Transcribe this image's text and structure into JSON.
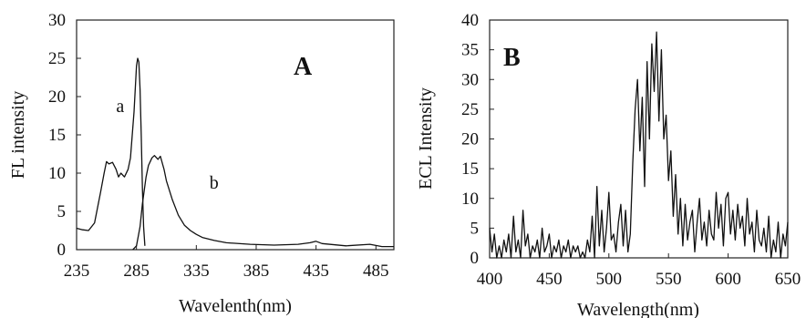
{
  "chart_data": [
    {
      "type": "line",
      "panel_label": "A",
      "xlabel": "Wavelenth(nm)",
      "ylabel": "FL intensity",
      "xlim": [
        235,
        500
      ],
      "ylim": [
        0,
        30
      ],
      "xticks": [
        235,
        285,
        335,
        385,
        435,
        485
      ],
      "yticks": [
        0,
        5,
        10,
        15,
        20,
        25,
        30
      ],
      "grid": false,
      "annotations": [
        {
          "text": "a",
          "x": 268,
          "y": 18
        },
        {
          "text": "b",
          "x": 346,
          "y": 8
        }
      ],
      "series": [
        {
          "name": "a",
          "x": [
            235,
            240,
            245,
            250,
            255,
            258,
            260,
            262,
            265,
            268,
            270,
            272,
            275,
            278,
            280,
            283,
            285,
            286,
            287,
            288,
            289,
            290,
            291,
            292
          ],
          "y": [
            2.8,
            2.6,
            2.5,
            3.5,
            7.5,
            10.0,
            11.5,
            11.2,
            11.4,
            10.5,
            9.5,
            10.0,
            9.5,
            10.5,
            12.0,
            18.0,
            24.0,
            25.0,
            24.5,
            21.0,
            15.0,
            8.0,
            3.0,
            0.5
          ]
        },
        {
          "name": "b",
          "x": [
            282,
            285,
            288,
            290,
            293,
            295,
            298,
            300,
            303,
            305,
            308,
            310,
            315,
            320,
            325,
            330,
            335,
            340,
            350,
            360,
            380,
            400,
            420,
            430,
            435,
            440,
            460,
            480,
            490,
            500
          ],
          "y": [
            0,
            0.5,
            3.0,
            6.0,
            9.5,
            11.0,
            12.0,
            12.3,
            11.8,
            12.2,
            10.5,
            9.0,
            6.5,
            4.5,
            3.2,
            2.5,
            2.0,
            1.6,
            1.2,
            0.9,
            0.7,
            0.6,
            0.7,
            0.9,
            1.1,
            0.8,
            0.5,
            0.7,
            0.4,
            0.4
          ]
        }
      ]
    },
    {
      "type": "line",
      "panel_label": "B",
      "xlabel": "Wavelength(nm)",
      "ylabel": "ECL Intensity",
      "xlim": [
        400,
        650
      ],
      "ylim": [
        0,
        40
      ],
      "xticks": [
        400,
        450,
        500,
        550,
        600,
        650
      ],
      "yticks": [
        0,
        5,
        10,
        15,
        20,
        25,
        30,
        35,
        40
      ],
      "grid": false,
      "series": [
        {
          "x": [
            400,
            402,
            404,
            406,
            408,
            410,
            412,
            414,
            416,
            418,
            420,
            422,
            424,
            426,
            428,
            430,
            432,
            434,
            436,
            438,
            440,
            442,
            444,
            446,
            448,
            450,
            452,
            454,
            456,
            458,
            460,
            462,
            464,
            466,
            468,
            470,
            472,
            474,
            476,
            478,
            480,
            482,
            484,
            486,
            488,
            490,
            492,
            494,
            496,
            498,
            500,
            502,
            504,
            506,
            508,
            510,
            512,
            514,
            516,
            518,
            520,
            522,
            524,
            526,
            528,
            530,
            532,
            534,
            536,
            538,
            540,
            542,
            544,
            546,
            548,
            550,
            552,
            554,
            556,
            558,
            560,
            562,
            564,
            566,
            568,
            570,
            572,
            574,
            576,
            578,
            580,
            582,
            584,
            586,
            588,
            590,
            592,
            594,
            596,
            598,
            600,
            602,
            604,
            606,
            608,
            610,
            612,
            614,
            616,
            618,
            620,
            622,
            624,
            626,
            628,
            630,
            632,
            634,
            636,
            638,
            640,
            642,
            644,
            646,
            648,
            650
          ],
          "y": [
            5,
            1,
            4,
            0,
            2,
            0,
            3,
            1,
            4,
            0,
            7,
            1,
            3,
            0,
            8,
            2,
            4,
            0,
            2,
            1,
            3,
            0,
            5,
            1,
            2,
            4,
            0,
            2,
            1,
            3,
            0,
            2,
            1,
            3,
            0,
            2,
            1,
            2,
            0,
            1,
            0,
            3,
            1,
            7,
            0,
            12,
            2,
            8,
            1,
            5,
            11,
            3,
            4,
            1,
            6,
            9,
            2,
            8,
            1,
            4,
            16,
            25,
            30,
            18,
            27,
            12,
            33,
            20,
            36,
            28,
            38,
            23,
            35,
            20,
            24,
            13,
            18,
            7,
            14,
            4,
            10,
            2,
            9,
            3,
            6,
            8,
            1,
            6,
            10,
            3,
            6,
            2,
            8,
            4,
            3,
            11,
            5,
            9,
            2,
            10,
            11,
            4,
            8,
            3,
            9,
            5,
            7,
            2,
            10,
            4,
            6,
            1,
            8,
            3,
            2,
            5,
            1,
            7,
            0,
            3,
            1,
            6,
            0,
            4,
            2,
            6
          ]
        }
      ]
    }
  ]
}
